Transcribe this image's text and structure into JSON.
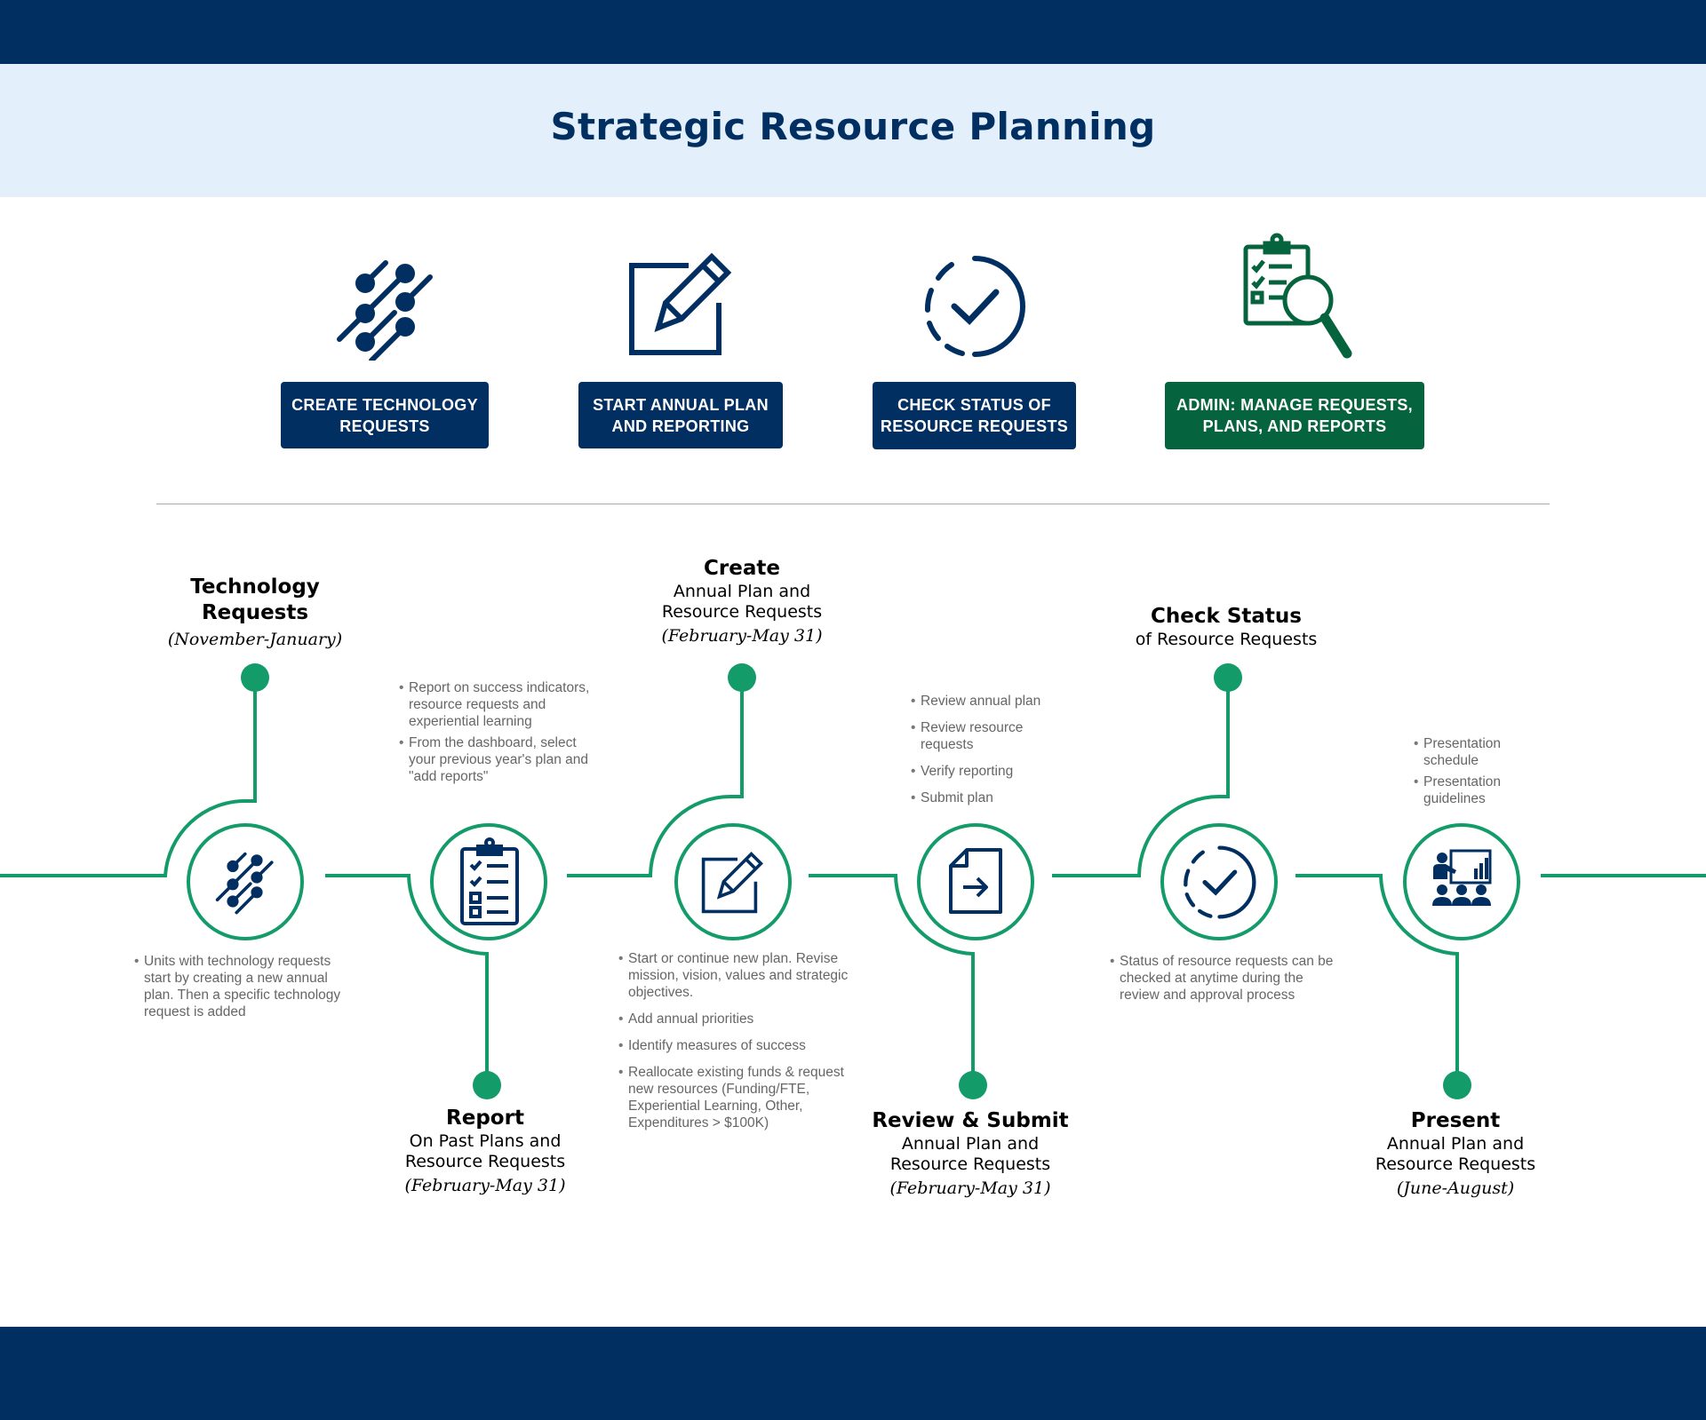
{
  "title": "Strategic Resource Planning",
  "colors": {
    "navy": "#022f61",
    "green": "#149b6a",
    "admin_green": "#05643d",
    "light_band": "#e3f0fc"
  },
  "actions": [
    {
      "label": "CREATE TECHNOLOGY REQUESTS",
      "icon": "circuit-icon"
    },
    {
      "label": "START ANNUAL PLAN AND REPORTING",
      "icon": "edit-icon"
    },
    {
      "label": "CHECK STATUS OF RESOURCE REQUESTS",
      "icon": "check-status-icon"
    },
    {
      "label": "ADMIN: MANAGE REQUESTS, PLANS, AND REPORTS",
      "icon": "clipboard-search-icon"
    }
  ],
  "stages": [
    {
      "title": "Technology Requests",
      "subtitle": "",
      "dates": "(November-January)",
      "icon": "circuit-icon",
      "bullets": [
        "Units with technology requests start by creating a new annual plan. Then a specific technology request is added"
      ]
    },
    {
      "title": "Report",
      "subtitle": "On Past Plans and Resource Requests",
      "dates": "(February-May 31)",
      "icon": "clipboard-checklist-icon",
      "bullets": [
        "Report on success indicators, resource requests and experiential learning",
        "From the dashboard, select your previous year's plan and \"add reports\""
      ]
    },
    {
      "title": "Create",
      "subtitle": "Annual Plan and Resource Requests",
      "dates": "(February-May 31)",
      "icon": "edit-icon",
      "bullets": [
        "Start or continue new plan. Revise mission, vision, values and strategic objectives.",
        "Add annual priorities",
        "Identify measures of success",
        "Reallocate existing funds & request new resources (Funding/FTE, Experiential Learning, Other, Expenditures > $100K)"
      ]
    },
    {
      "title": "Review & Submit",
      "subtitle": "Annual Plan and Resource Requests",
      "dates": "(February-May 31)",
      "icon": "document-submit-icon",
      "bullets": [
        "Review annual plan",
        "Review resource requests",
        "Verify reporting",
        "Submit plan"
      ]
    },
    {
      "title": "Check Status",
      "subtitle": "of Resource Requests",
      "dates": "",
      "icon": "check-status-icon",
      "bullets": [
        "Status of resource requests can be checked at anytime during the review and approval process"
      ]
    },
    {
      "title": "Present",
      "subtitle": "Annual Plan and Resource Requests",
      "dates": "(June-August)",
      "icon": "presentation-icon",
      "bullets": [
        "Presentation schedule",
        "Presentation guidelines"
      ]
    }
  ]
}
